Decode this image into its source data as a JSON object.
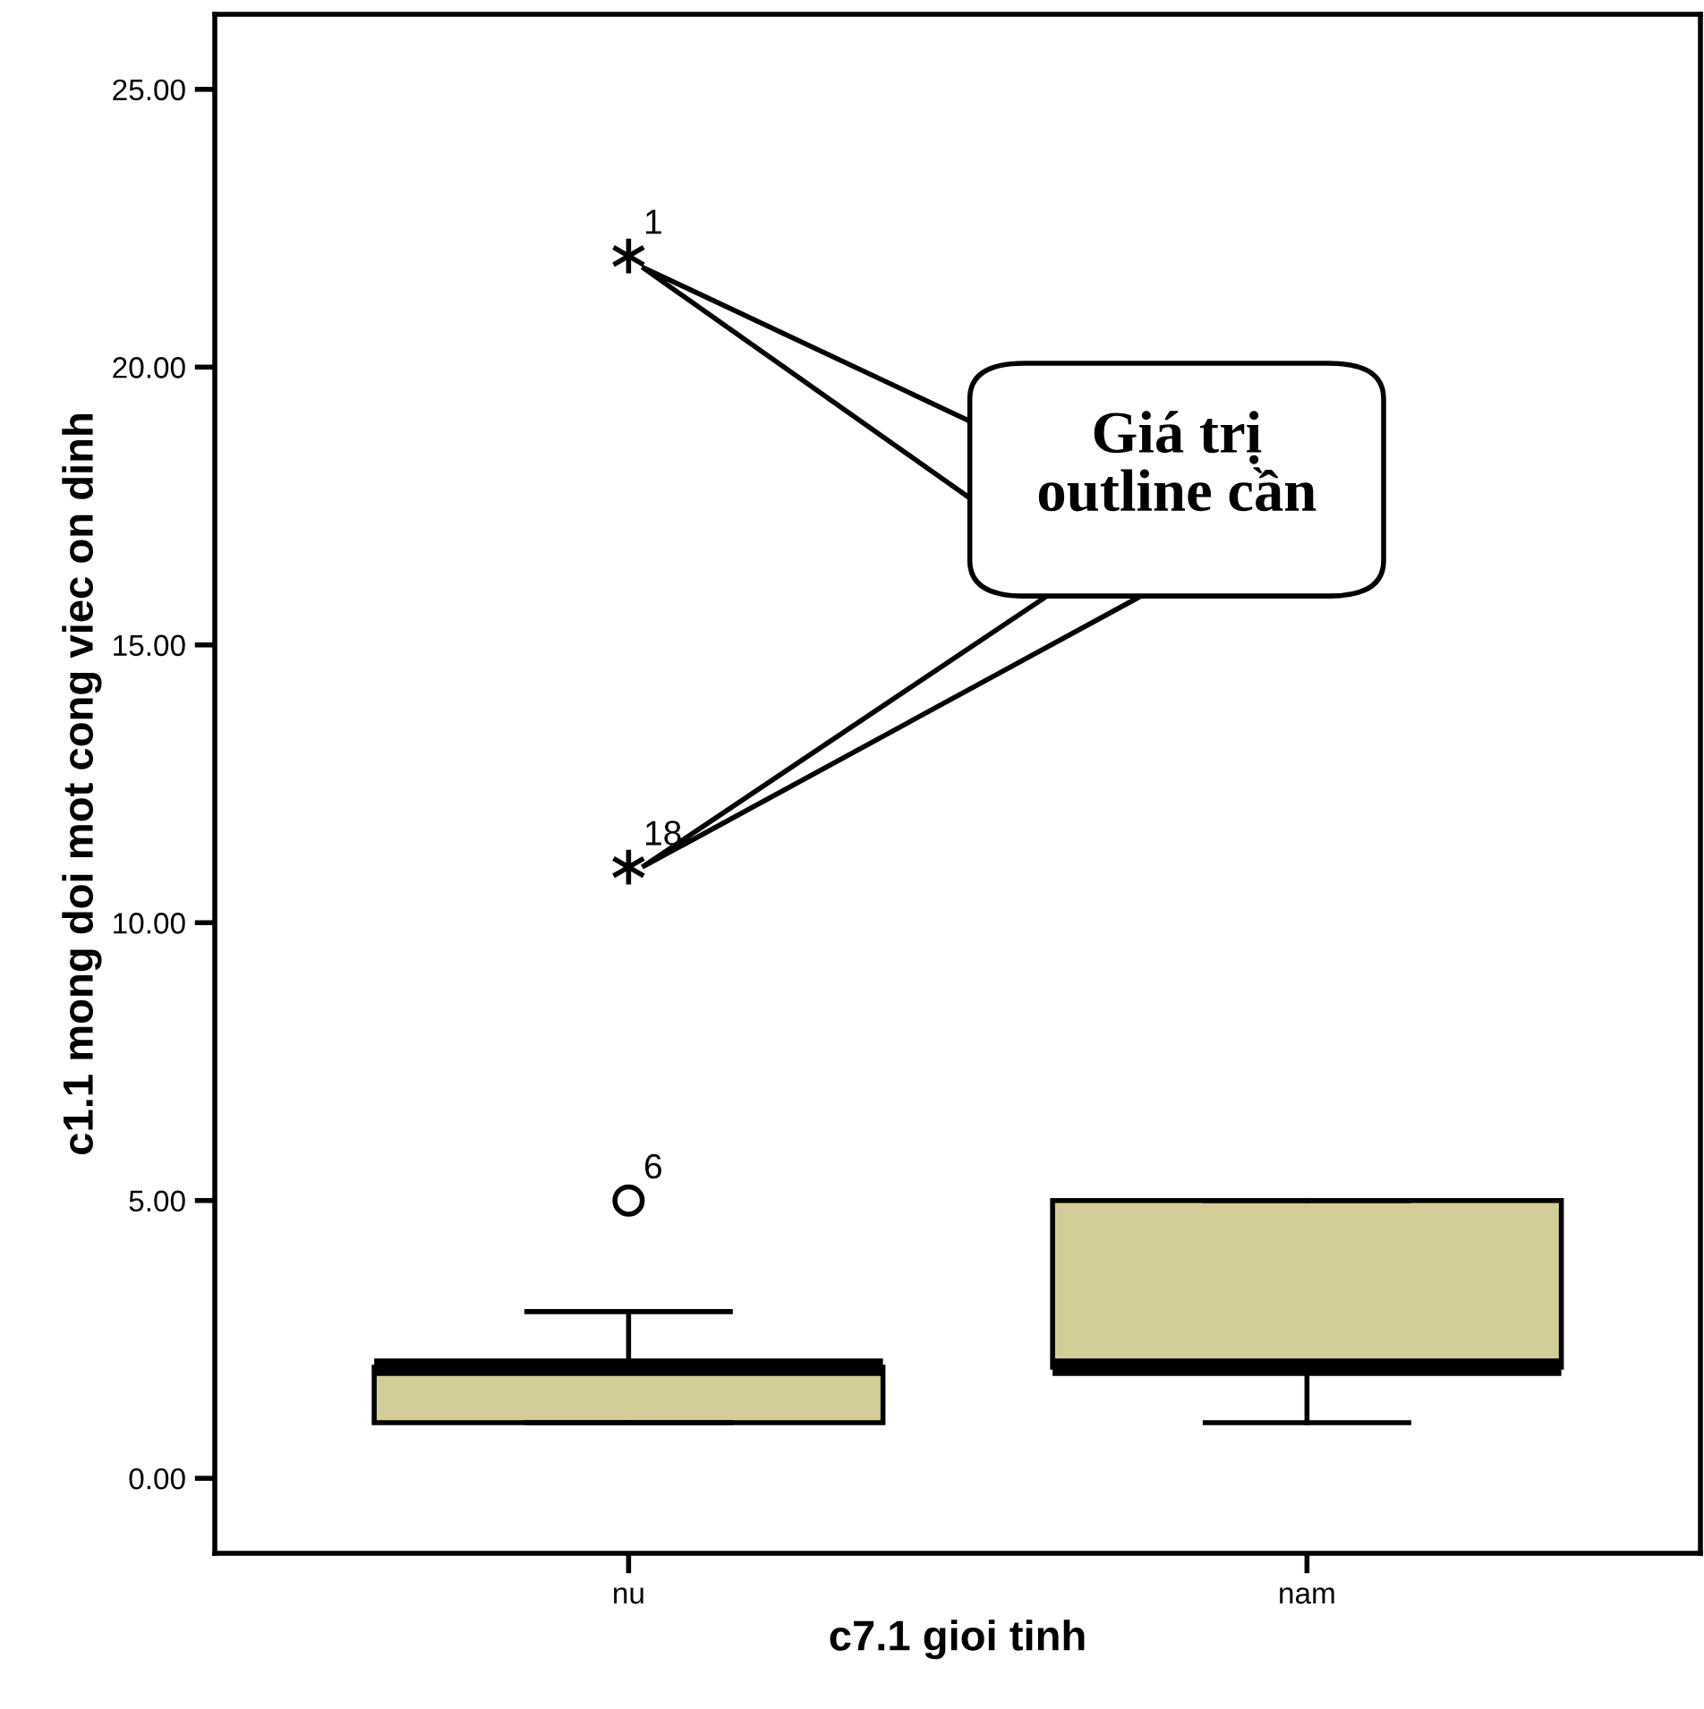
{
  "chart_data": {
    "type": "box",
    "xlabel": "c7.1 gioi tinh",
    "ylabel": "c1.1 mong doi mot cong viec on dinh",
    "categories": [
      "nu",
      "nam"
    ],
    "series": [
      {
        "color": "#d3cd98",
        "boxes": [
          {
            "low": 1,
            "q1": 1,
            "median": 2,
            "q3": 2,
            "high": 3,
            "outliers": [
              22,
              11,
              5
            ]
          },
          {
            "low": 1,
            "q1": 2,
            "median": 2,
            "q3": 5,
            "high": 5
          }
        ]
      }
    ],
    "ylim": [
      -1.35,
      26.35
    ],
    "yticks": [
      {
        "value": 0,
        "label": "0.00"
      },
      {
        "value": 5,
        "label": "5.00"
      },
      {
        "value": 10,
        "label": "10.00"
      },
      {
        "value": 15,
        "label": "15.00"
      },
      {
        "value": 20,
        "label": "20.00"
      },
      {
        "value": 25,
        "label": "25.00"
      }
    ],
    "grid": false,
    "annotations": [
      "1",
      "18",
      "6",
      "Giá trị\noutline cần"
    ]
  }
}
